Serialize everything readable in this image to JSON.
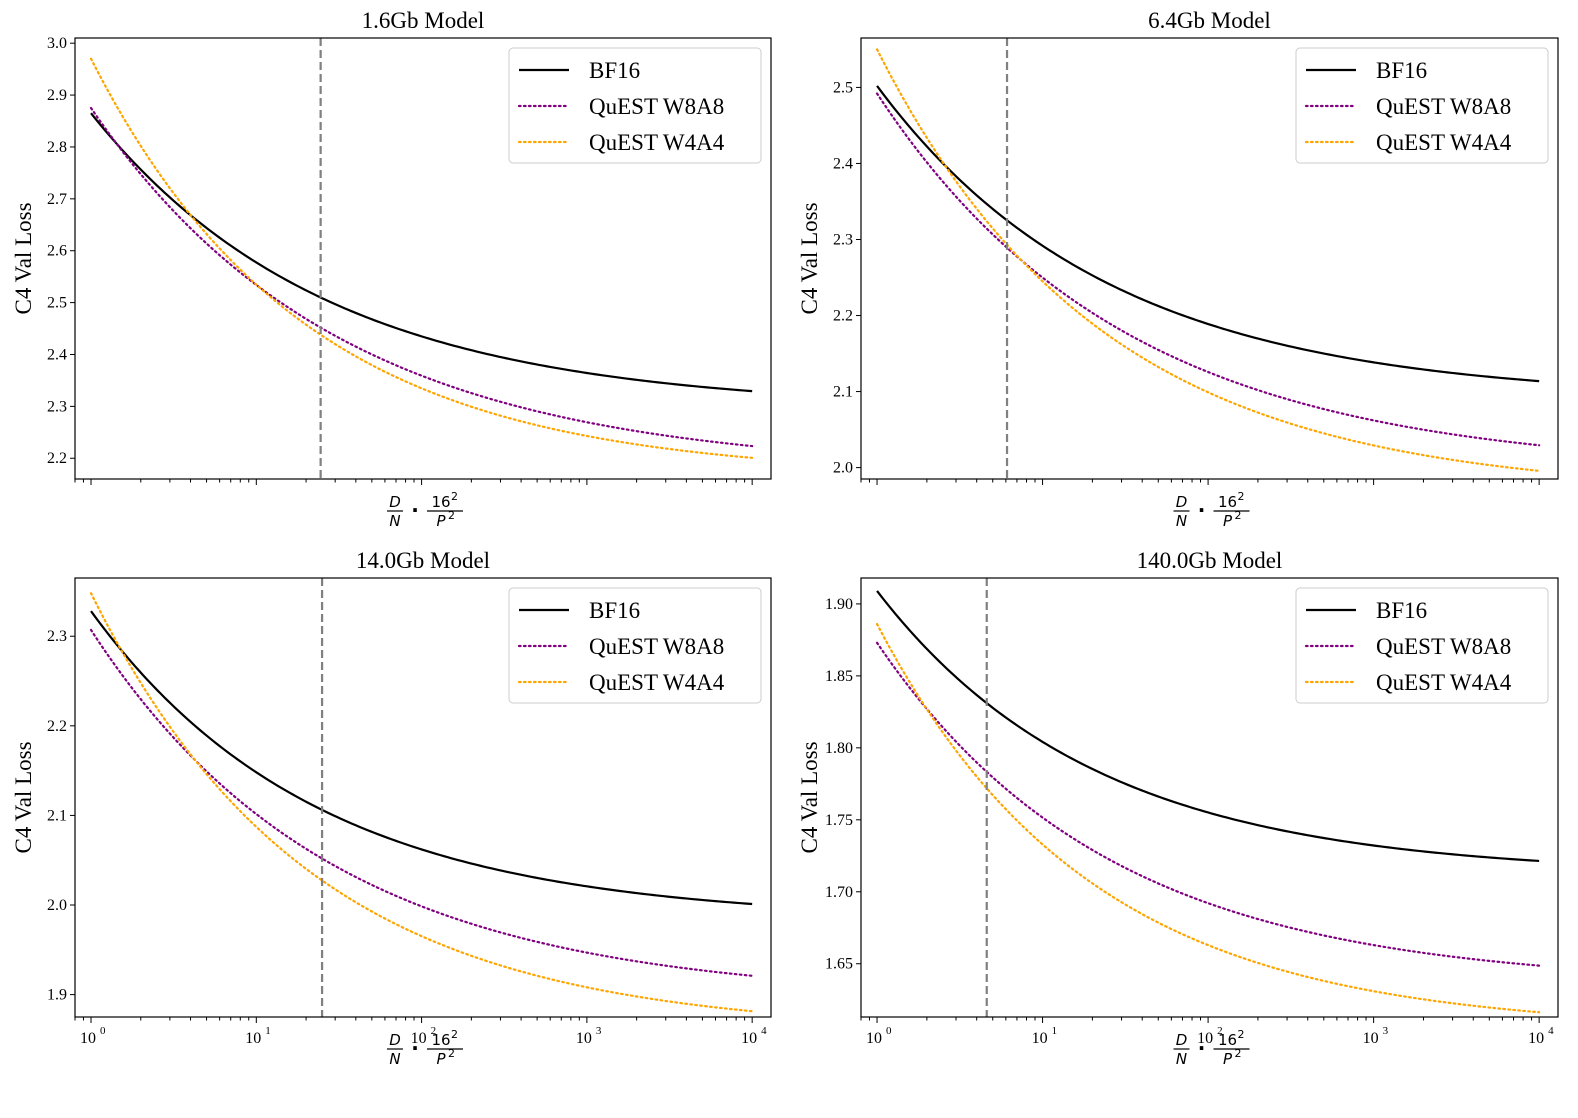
{
  "chart_data": [
    {
      "type": "line",
      "title": "1.6Gb Model",
      "ylabel": "C4 Val Loss",
      "xlabel": {
        "frac_num": "D",
        "frac_den": "N",
        "mult": "·",
        "num_base": "16",
        "num_exp": "2",
        "den_base": "P",
        "den_exp": "2"
      },
      "xscale": "log",
      "xlim": [
        0.8,
        13000
      ],
      "ylim": [
        2.16,
        3.01
      ],
      "yticks": [
        "2.2",
        "2.3",
        "2.4",
        "2.5",
        "2.6",
        "2.7",
        "2.8",
        "2.9",
        "3.0"
      ],
      "xtick_labels": [],
      "vline_x": 24.5,
      "legend": "top-right",
      "series": [
        {
          "name": "BF16",
          "style": "solid",
          "color": "#000000",
          "A": 2.295,
          "B": 0.57,
          "alpha": 0.305
        },
        {
          "name": "QuEST W8A8",
          "style": "dotted",
          "color": "#800080",
          "A": 2.175,
          "B": 0.7,
          "alpha": 0.29
        },
        {
          "name": "QuEST W4A4",
          "style": "dotted",
          "color": "#FFA500",
          "A": 2.165,
          "B": 0.805,
          "alpha": 0.338
        }
      ]
    },
    {
      "type": "line",
      "title": "6.4Gb Model",
      "ylabel": "C4 Val Loss",
      "xlabel": {
        "frac_num": "D",
        "frac_den": "N",
        "mult": "·",
        "num_base": "16",
        "num_exp": "2",
        "den_base": "P",
        "den_exp": "2"
      },
      "xscale": "log",
      "xlim": [
        0.8,
        13000
      ],
      "ylim": [
        1.985,
        2.565
      ],
      "yticks": [
        "2.0",
        "2.1",
        "2.2",
        "2.3",
        "2.4",
        "2.5"
      ],
      "xtick_labels": [],
      "vline_x": 6.1,
      "legend": "top-right",
      "series": [
        {
          "name": "BF16",
          "style": "solid",
          "color": "#000000",
          "A": 2.09,
          "B": 0.412,
          "alpha": 0.31
        },
        {
          "name": "QuEST W8A8",
          "style": "dotted",
          "color": "#800080",
          "A": 1.995,
          "B": 0.497,
          "alpha": 0.29
        },
        {
          "name": "QuEST W4A4",
          "style": "dotted",
          "color": "#FFA500",
          "A": 1.965,
          "B": 0.585,
          "alpha": 0.32
        }
      ]
    },
    {
      "type": "line",
      "title": "14.0Gb Model",
      "ylabel": "C4 Val Loss",
      "xlabel": {
        "frac_num": "D",
        "frac_den": "N",
        "mult": "·",
        "num_base": "16",
        "num_exp": "2",
        "den_base": "P",
        "den_exp": "2"
      },
      "xscale": "log",
      "xlim": [
        0.8,
        13000
      ],
      "ylim": [
        1.875,
        2.365
      ],
      "yticks": [
        "1.9",
        "2.0",
        "2.1",
        "2.2",
        "2.3"
      ],
      "xtick_labels": [
        {
          "base": "10",
          "exp": "0",
          "value": 1
        },
        {
          "base": "10",
          "exp": "1",
          "value": 10
        },
        {
          "base": "10",
          "exp": "2",
          "value": 100
        },
        {
          "base": "10",
          "exp": "3",
          "value": 1000
        },
        {
          "base": "10",
          "exp": "4",
          "value": 10000
        }
      ],
      "vline_x": 25,
      "legend": "top-right",
      "series": [
        {
          "name": "BF16",
          "style": "solid",
          "color": "#000000",
          "A": 1.983,
          "B": 0.345,
          "alpha": 0.32
        },
        {
          "name": "QuEST W8A8",
          "style": "dotted",
          "color": "#800080",
          "A": 1.895,
          "B": 0.412,
          "alpha": 0.3
        },
        {
          "name": "QuEST W4A4",
          "style": "dotted",
          "color": "#FFA500",
          "A": 1.858,
          "B": 0.49,
          "alpha": 0.33
        }
      ]
    },
    {
      "type": "line",
      "title": "140.0Gb Model",
      "ylabel": "C4 Val Loss",
      "xlabel": {
        "frac_num": "D",
        "frac_den": "N",
        "mult": "·",
        "num_base": "16",
        "num_exp": "2",
        "den_base": "P",
        "den_exp": "2"
      },
      "xscale": "log",
      "xlim": [
        0.8,
        13000
      ],
      "ylim": [
        1.613,
        1.918
      ],
      "yticks": [
        "1.65",
        "1.70",
        "1.75",
        "1.80",
        "1.85",
        "1.90"
      ],
      "xtick_labels": [
        {
          "base": "10",
          "exp": "0",
          "value": 1
        },
        {
          "base": "10",
          "exp": "1",
          "value": 10
        },
        {
          "base": "10",
          "exp": "2",
          "value": 100
        },
        {
          "base": "10",
          "exp": "3",
          "value": 1000
        },
        {
          "base": "10",
          "exp": "4",
          "value": 10000
        }
      ],
      "vline_x": 4.6,
      "legend": "top-right",
      "series": [
        {
          "name": "BF16",
          "style": "solid",
          "color": "#000000",
          "A": 1.712,
          "B": 0.197,
          "alpha": 0.33
        },
        {
          "name": "QuEST W8A8",
          "style": "dotted",
          "color": "#800080",
          "A": 1.635,
          "B": 0.238,
          "alpha": 0.31
        },
        {
          "name": "QuEST W4A4",
          "style": "dotted",
          "color": "#FFA500",
          "A": 1.604,
          "B": 0.282,
          "alpha": 0.34
        }
      ]
    }
  ]
}
